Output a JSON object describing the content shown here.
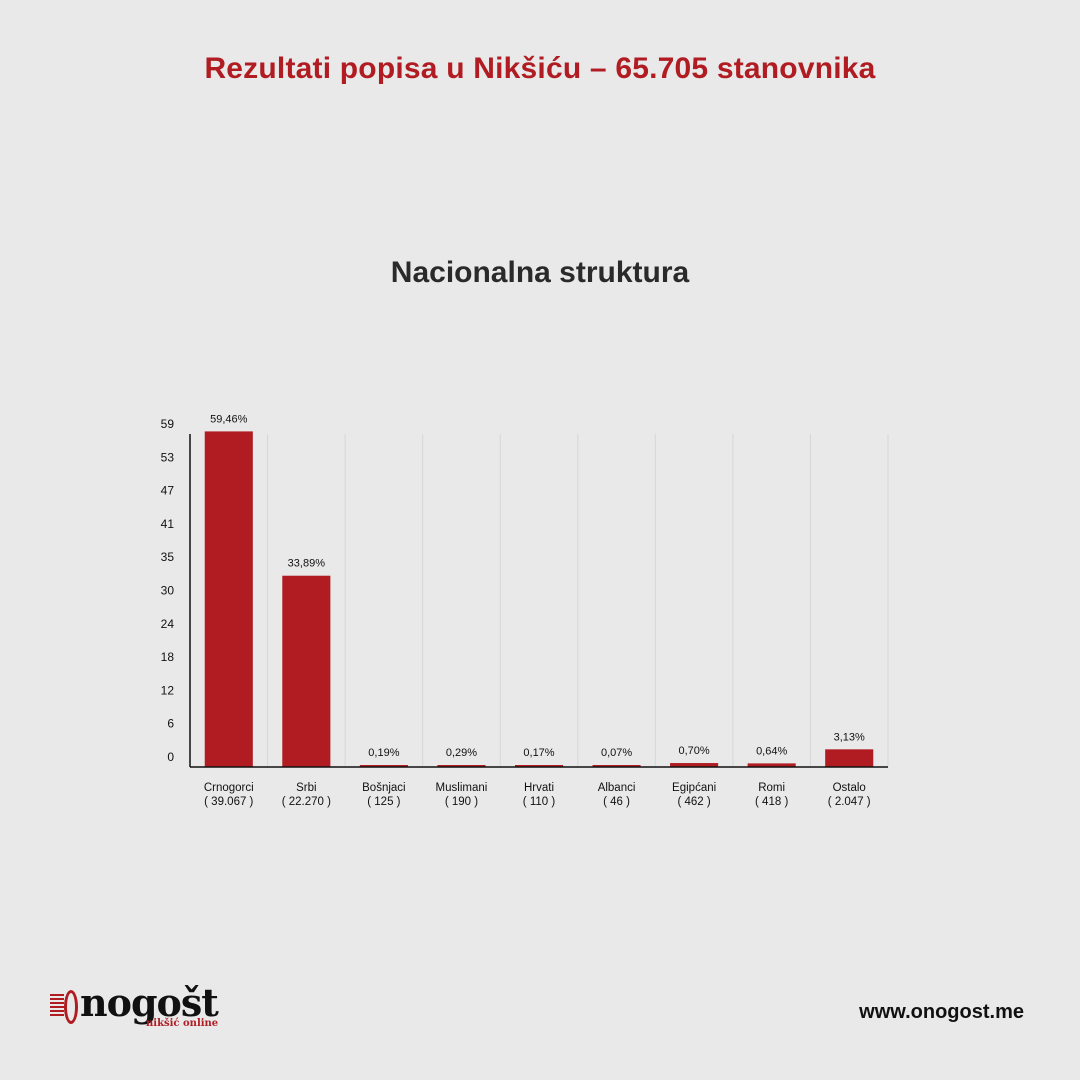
{
  "header": {
    "title": "Rezultati popisa u Nikšiću – 65.705 stanovnika"
  },
  "section": {
    "title": "Nacionalna struktura"
  },
  "chart_data": {
    "type": "bar",
    "title": "Nacionalna struktura",
    "xlabel": "",
    "ylabel": "",
    "ylim": [
      0,
      59
    ],
    "yticks": [
      0,
      6,
      12,
      18,
      24,
      30,
      35,
      41,
      47,
      53,
      59
    ],
    "grid": "vertical",
    "legend": "none",
    "bar_color": "#b01c22",
    "categories": [
      "Crnogorci",
      "Srbi",
      "Bošnjaci",
      "Muslimani",
      "Hrvati",
      "Albanci",
      "Egipćani",
      "Romi",
      "Ostalo"
    ],
    "category_counts": [
      "( 39.067 )",
      "( 22.270 )",
      "( 125 )",
      "( 190 )",
      "( 110 )",
      "( 46 )",
      "( 462 )",
      "( 418 )",
      "( 2.047 )"
    ],
    "values": [
      59.46,
      33.89,
      0.19,
      0.29,
      0.17,
      0.07,
      0.7,
      0.64,
      3.13
    ],
    "value_labels": [
      "59,46%",
      "33,89%",
      "0,19%",
      "0,29%",
      "0,17%",
      "0,07%",
      "0,70%",
      "0,64%",
      "3,13%"
    ]
  },
  "footer": {
    "logo_text": "nogošt",
    "logo_tagline": "nikšić online",
    "url": "www.onogost.me"
  },
  "colors": {
    "accent": "#b01c22",
    "background": "#e9e9e9"
  },
  "icons": {
    "logo": "onogost-logo-icon"
  }
}
